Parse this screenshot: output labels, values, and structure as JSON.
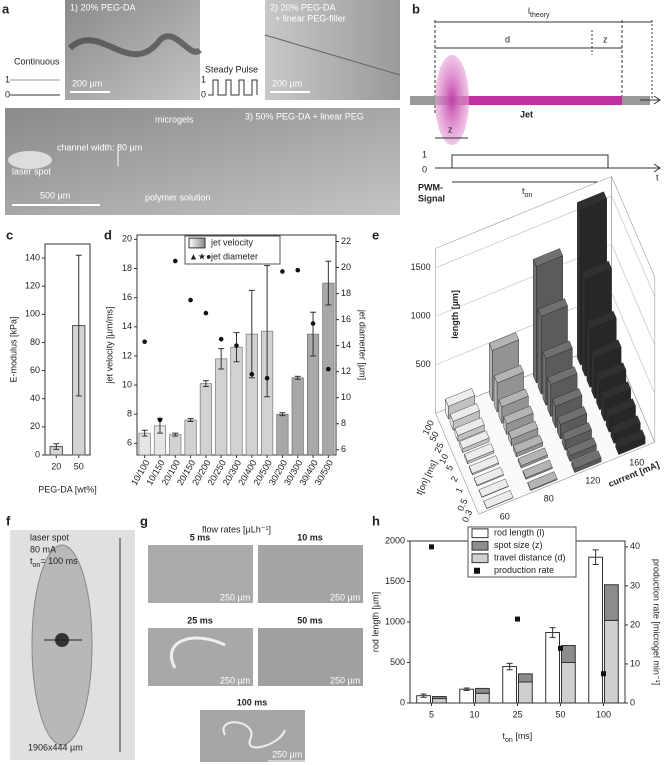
{
  "panel_labels": [
    "a",
    "b",
    "c",
    "d",
    "e",
    "f",
    "g",
    "h"
  ],
  "panel_a": {
    "inset_1": "1) 20% PEG-DA",
    "inset_2": [
      "2) 20% PEG-DA",
      "+ linear PEG-filler"
    ],
    "continuous": "Continuous",
    "steady_pulse": "Steady Pulse",
    "signal_levels": [
      "1",
      "0",
      "1",
      "0"
    ],
    "scale_1": "200 µm",
    "scale_2": "200 µm",
    "inset_3": "3) 50% PEG-DA + linear PEG",
    "channel_width": "channel width: 80 µm",
    "microgels": "microgels",
    "laser_spot": "laser spot",
    "polymer_solution": "polymer solution",
    "scale_3": "500 µm"
  },
  "panel_b": {
    "l_theory": {
      "main": "l",
      "sub": "theory"
    },
    "d": "d",
    "z_top": "z",
    "jet": "Jet",
    "z_bottom": "z",
    "level_1": "1",
    "level_0": "0",
    "t": "t",
    "pwm_signal": [
      "PWM-",
      "Signal"
    ],
    "t_on": {
      "main": "t",
      "sub": "on"
    }
  },
  "panel_f": {
    "caption": [
      "laser spot",
      "80 mA"
    ],
    "t_on": {
      "main": "t",
      "sub": "on",
      "rest": "= 100 ms"
    },
    "size": "1906x444 µm"
  },
  "panel_g": {
    "images": [
      {
        "title": "5 ms",
        "scale": "250 µm"
      },
      {
        "title": "10 ms",
        "scale": "250 µm"
      },
      {
        "title": "25 ms",
        "scale": "250 µm"
      },
      {
        "title": "50 ms",
        "scale": "250 µm"
      },
      {
        "title": "100 ms",
        "scale": "250 µm"
      }
    ]
  },
  "chart_data": [
    {
      "type": "bar",
      "ylabel": "E-modulus [kPa]",
      "xlabel": "PEG-DA [wt%]",
      "categories": [
        "20",
        "50"
      ],
      "values": [
        6,
        92
      ],
      "errors": [
        2,
        50
      ],
      "color": "#d4d4d4",
      "ylim": [
        0,
        150
      ],
      "yticks": [
        0,
        20,
        40,
        60,
        80,
        100,
        120,
        140
      ]
    },
    {
      "type": "bar",
      "ylabel": "jet velocity [µm/ms]",
      "y2label": "jet diamerter [µm]",
      "xlabel": "flow rates [µLh⁻¹]",
      "categories": [
        "10/100",
        "10/150",
        "20/100",
        "20/150",
        "20/200",
        "20/250",
        "20/300",
        "20/400",
        "20/500",
        "30/200",
        "30/300",
        "30/400",
        "30/500"
      ],
      "series": [
        {
          "name": "jet velocity",
          "colors": [
            "#e6e6e6",
            "#e6e6e6",
            "#d2d2d2",
            "#d2d2d2",
            "#d2d2d2",
            "#d2d2d2",
            "#d2d2d2",
            "#d2d2d2",
            "#d2d2d2",
            "#a8a8a8",
            "#a8a8a8",
            "#a8a8a8",
            "#a8a8a8"
          ],
          "values": [
            6.7,
            7.2,
            6.6,
            7.6,
            10.1,
            11.8,
            12.6,
            13.5,
            13.7,
            8.0,
            10.5,
            13.5,
            17.0
          ],
          "errors": [
            0.2,
            0.5,
            0.1,
            0.1,
            0.2,
            0.7,
            1.0,
            3.0,
            4.5,
            0.1,
            0.1,
            1.5,
            1.5
          ]
        },
        {
          "name": "jet diameter",
          "legend_marker": "▲★●",
          "color": "#111111",
          "axis": "y2",
          "values": [
            14.3,
            8.3,
            20.5,
            17.5,
            16.5,
            14.5,
            14.0,
            11.8,
            11.5,
            19.7,
            19.8,
            15.7,
            12.2
          ]
        }
      ],
      "ylim": [
        5.2,
        20.3
      ],
      "yticks": [
        6,
        8,
        10,
        12,
        14,
        16,
        18,
        20
      ],
      "y2lim": [
        5.6,
        22.5
      ],
      "y2ticks": [
        6,
        8,
        10,
        12,
        14,
        16,
        18,
        20,
        22
      ]
    },
    {
      "type": "bar3d",
      "zlabel": "length [µm]",
      "xlabel": "current [mA]",
      "ylabel": "t[on] [ms]",
      "categories": [
        "100",
        "50",
        "25",
        "10",
        "5",
        "2",
        "1",
        "0.5",
        "0.3"
      ],
      "series": [
        {
          "name": "60",
          "color": "#ececec",
          "values": [
            130,
            90,
            60,
            40,
            25,
            15,
            10,
            5,
            3
          ]
        },
        {
          "name": "80",
          "color": "#b4b4b4",
          "values": [
            520,
            300,
            170,
            110,
            70,
            40,
            25,
            15,
            10
          ]
        },
        {
          "name": "120",
          "color": "#707070",
          "values": [
            1200,
            800,
            480,
            330,
            220,
            150,
            100,
            60,
            40
          ]
        },
        {
          "name": "160",
          "color": "#303030",
          "values": [
            1600,
            1000,
            600,
            420,
            300,
            220,
            160,
            100,
            70
          ]
        }
      ],
      "zlim": [
        0,
        1700
      ],
      "zticks": [
        500,
        1000,
        1500
      ]
    },
    {
      "type": "bar",
      "ylabel": "rod length [µm]",
      "y2label": "production rate [microgel min⁻¹]",
      "xlabel": {
        "main": "t",
        "sub": "on",
        "rest": " [ms]"
      },
      "categories": [
        "5",
        "10",
        "25",
        "50",
        "100"
      ],
      "series": [
        {
          "name": "rod length (l)",
          "color": "#ffffff",
          "values": [
            90,
            170,
            450,
            870,
            1800
          ],
          "errors": [
            20,
            15,
            40,
            60,
            90
          ]
        },
        {
          "name": "spot size (z)",
          "color": "#8c8c8c",
          "values": [
            25,
            60,
            100,
            210,
            440
          ]
        },
        {
          "name": "travel distance (d)",
          "color": "#cfcfcf",
          "values": [
            55,
            120,
            260,
            500,
            1020
          ]
        },
        {
          "name": "production rate",
          "color": "#111111",
          "axis": "y2",
          "values": [
            40,
            33,
            21.5,
            14,
            7.5
          ]
        }
      ],
      "ylim": [
        0,
        2000
      ],
      "yticks": [
        0,
        500,
        1000,
        1500,
        2000
      ],
      "y2lim": [
        0,
        41.5
      ],
      "y2ticks": [
        0,
        10,
        20,
        30,
        40
      ]
    }
  ]
}
